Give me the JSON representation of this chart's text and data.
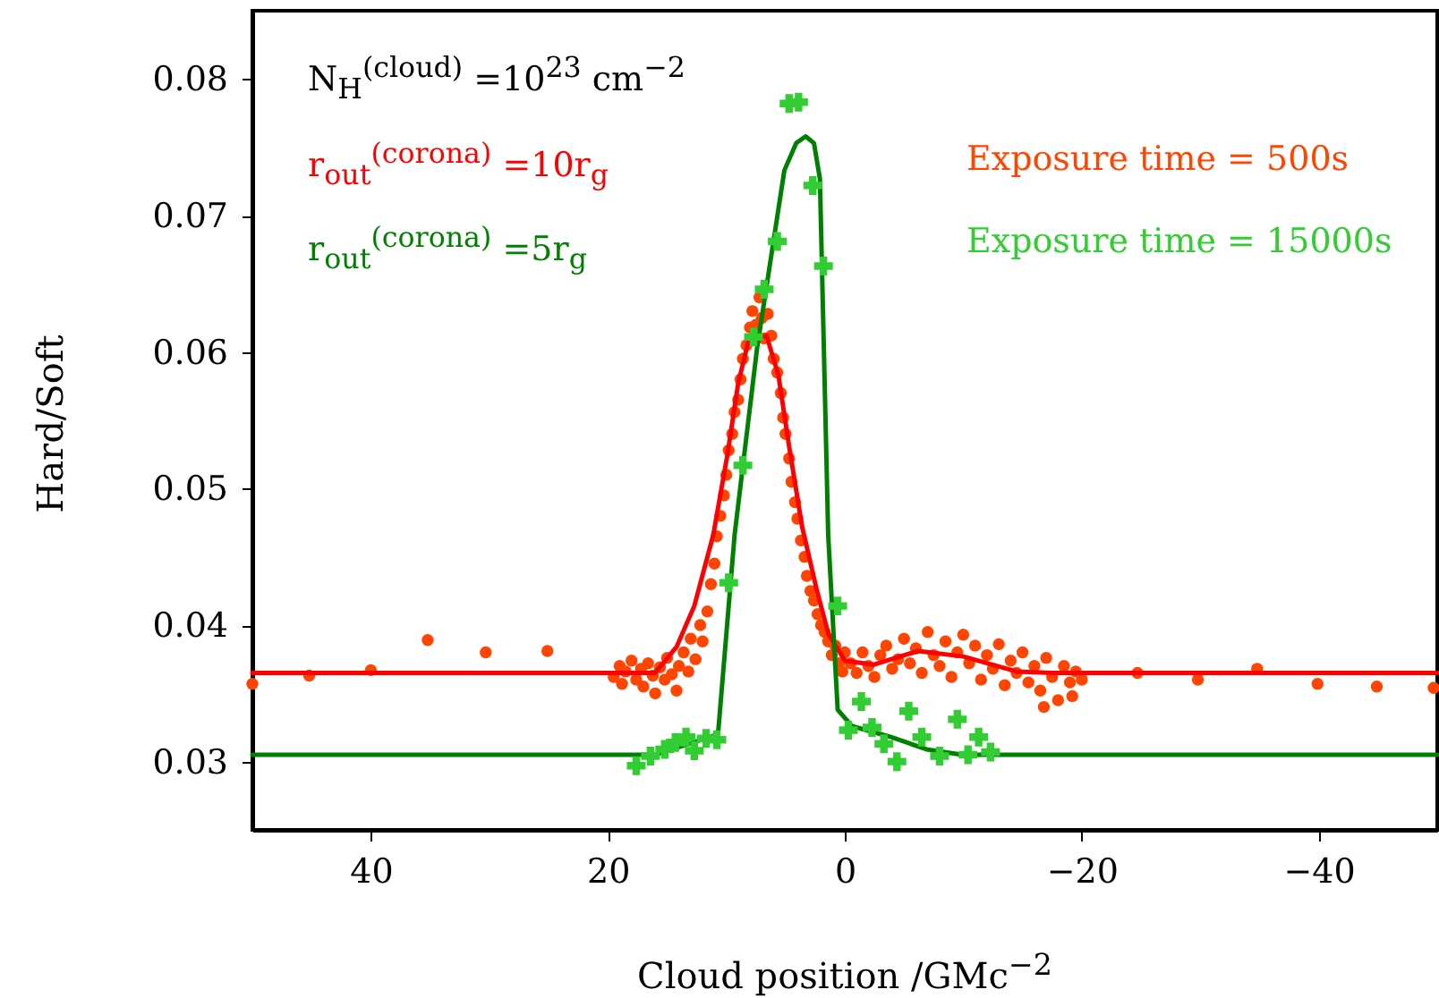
{
  "chart_data": {
    "type": "scatter",
    "xlabel": "Cloud position /GMc$^{−2}$",
    "ylabel": "Hard/Soft",
    "xlim": [
      50,
      -50
    ],
    "xticks": [
      40,
      20,
      0,
      -20,
      -40
    ],
    "ylim": [
      0.025,
      0.085
    ],
    "yticks": [
      0.03,
      0.04,
      0.05,
      0.06,
      0.07,
      0.08
    ],
    "grid": false,
    "legend": "top",
    "annotations": [
      "N$_{H}$$^{(cloud)}$ =10$^{23}$  cm$^{−2}$"
    ],
    "series": [
      {
        "name": "Exposure time = 500s",
        "marker": "circle",
        "color": "#ff4500",
        "x": [
          50,
          45.2,
          40,
          35.2,
          30.3,
          25.1,
          -24.7,
          -29.8,
          -34.8,
          -39.9,
          -44.9,
          -49.7,
          19.5,
          19,
          18.8,
          18.5,
          18,
          17.6,
          17.2,
          17,
          16.6,
          16.2,
          16,
          15.6,
          15.2,
          15,
          14.6,
          14.2,
          14,
          13.6,
          13.2,
          13,
          12.6,
          12.2,
          12,
          11.6,
          11.3,
          11,
          10.8,
          10.5,
          10.2,
          10,
          9.8,
          9.5,
          9.3,
          9,
          8.8,
          8.6,
          8.3,
          8,
          7.8,
          7.5,
          7.2,
          7,
          6.8,
          6.5,
          6.2,
          6,
          5.7,
          5.4,
          5.2,
          5,
          4.7,
          4.5,
          4.2,
          4,
          3.7,
          3.4,
          3.2,
          2.9,
          2.6,
          2.3,
          2,
          1.7,
          1.4,
          1.1,
          0.8,
          0.5,
          0.2,
          0,
          -0.5,
          -1,
          -1.5,
          -2,
          -2.5,
          -3,
          -3.5,
          -4,
          -4.5,
          -5,
          -5.5,
          -6,
          -6.5,
          -7,
          -7.5,
          -8,
          -8.5,
          -9,
          -9.5,
          -10,
          -10.5,
          -11,
          -11.5,
          -12,
          -12.5,
          -13,
          -13.5,
          -14,
          -14.5,
          -15,
          -15.5,
          -16,
          -16.5,
          -17,
          -17.5,
          -18,
          -18.5,
          -19,
          -19.5,
          -20,
          -16.8,
          -19.2
        ],
        "values": [
          0.0357,
          0.0363,
          0.0367,
          0.0389,
          0.038,
          0.0381,
          0.0365,
          0.036,
          0.0368,
          0.0357,
          0.0355,
          0.0354,
          0.0362,
          0.037,
          0.0357,
          0.0366,
          0.0374,
          0.036,
          0.0368,
          0.0355,
          0.0372,
          0.0363,
          0.035,
          0.0369,
          0.036,
          0.0376,
          0.0364,
          0.0352,
          0.037,
          0.038,
          0.0366,
          0.039,
          0.0375,
          0.04,
          0.0388,
          0.041,
          0.043,
          0.0445,
          0.0465,
          0.048,
          0.0495,
          0.051,
          0.0528,
          0.054,
          0.0556,
          0.0565,
          0.058,
          0.0595,
          0.0605,
          0.0618,
          0.063,
          0.062,
          0.064,
          0.0625,
          0.061,
          0.0628,
          0.0612,
          0.0595,
          0.0585,
          0.057,
          0.0552,
          0.054,
          0.0522,
          0.0505,
          0.049,
          0.0478,
          0.0462,
          0.045,
          0.0436,
          0.0425,
          0.0418,
          0.0408,
          0.04,
          0.0395,
          0.0388,
          0.0378,
          0.0385,
          0.0372,
          0.0366,
          0.038,
          0.0372,
          0.0365,
          0.038,
          0.037,
          0.0362,
          0.0378,
          0.0385,
          0.0368,
          0.0375,
          0.039,
          0.0372,
          0.0383,
          0.0365,
          0.0395,
          0.0378,
          0.037,
          0.0388,
          0.0362,
          0.038,
          0.0393,
          0.0372,
          0.0385,
          0.036,
          0.0378,
          0.0368,
          0.0386,
          0.0356,
          0.0374,
          0.0365,
          0.038,
          0.0358,
          0.037,
          0.0352,
          0.0376,
          0.0362,
          0.0345,
          0.037,
          0.0358,
          0.0366,
          0.036,
          0.034,
          0.0348
        ]
      },
      {
        "name": "r$_{out}$$^{(corona)}$ =10r$_{g}$",
        "type": "line",
        "color": "#ff0000",
        "x": [
          50,
          17,
          16,
          14.2,
          12.7,
          11.1,
          9.9,
          9,
          8.1,
          6.6,
          5.6,
          4.7,
          3.6,
          2.4,
          1.4,
          0,
          -2.4,
          -6.2,
          -10,
          -14.5,
          -17.5,
          -50
        ],
        "values": [
          0.0365,
          0.0365,
          0.0365,
          0.0384,
          0.0414,
          0.0466,
          0.0525,
          0.0577,
          0.0609,
          0.0612,
          0.0583,
          0.0531,
          0.0472,
          0.0427,
          0.0394,
          0.0374,
          0.0371,
          0.0381,
          0.0377,
          0.0366,
          0.0365,
          0.0365
        ]
      },
      {
        "name": "r$_{out}$$^{(corona)}$ =5r$_{g}$",
        "type": "line",
        "color": "#008000",
        "x": [
          50,
          16,
          10.7,
          9.3,
          7.4,
          5.1,
          4.1,
          3.3,
          2.6,
          2.1,
          1.4,
          0.6,
          -0.6,
          -3.9,
          -6.9,
          -9.9,
          -50
        ],
        "values": [
          0.0305,
          0.0305,
          0.032,
          0.0466,
          0.0603,
          0.0733,
          0.0753,
          0.0758,
          0.0753,
          0.0727,
          0.0466,
          0.0338,
          0.0326,
          0.0318,
          0.0309,
          0.0305,
          0.0305
        ]
      },
      {
        "name": "Exposure time = 15000s",
        "marker": "cross",
        "color": "#32cd32",
        "x": [
          17.6,
          16.4,
          15.2,
          14.3,
          13.4,
          12.7,
          11.7,
          10.8,
          9.8,
          8.6,
          7.7,
          6.8,
          5.7,
          4.7,
          3.9,
          2.7,
          1.8,
          0.6,
          -1.4,
          -0.3,
          -2.3,
          -3.3,
          -4.4,
          -5.4,
          -6.5,
          -8,
          -9.5,
          -10.4,
          -11.3,
          -12.3
        ],
        "values": [
          0.0297,
          0.0304,
          0.0309,
          0.0314,
          0.0318,
          0.0308,
          0.0317,
          0.0316,
          0.0431,
          0.0517,
          0.0611,
          0.0646,
          0.0681,
          0.0782,
          0.0783,
          0.0722,
          0.0663,
          0.0414,
          0.0344,
          0.0323,
          0.0325,
          0.0313,
          0.03,
          0.0337,
          0.0318,
          0.0304,
          0.0331,
          0.0305,
          0.0318,
          0.0307
        ]
      }
    ]
  }
}
